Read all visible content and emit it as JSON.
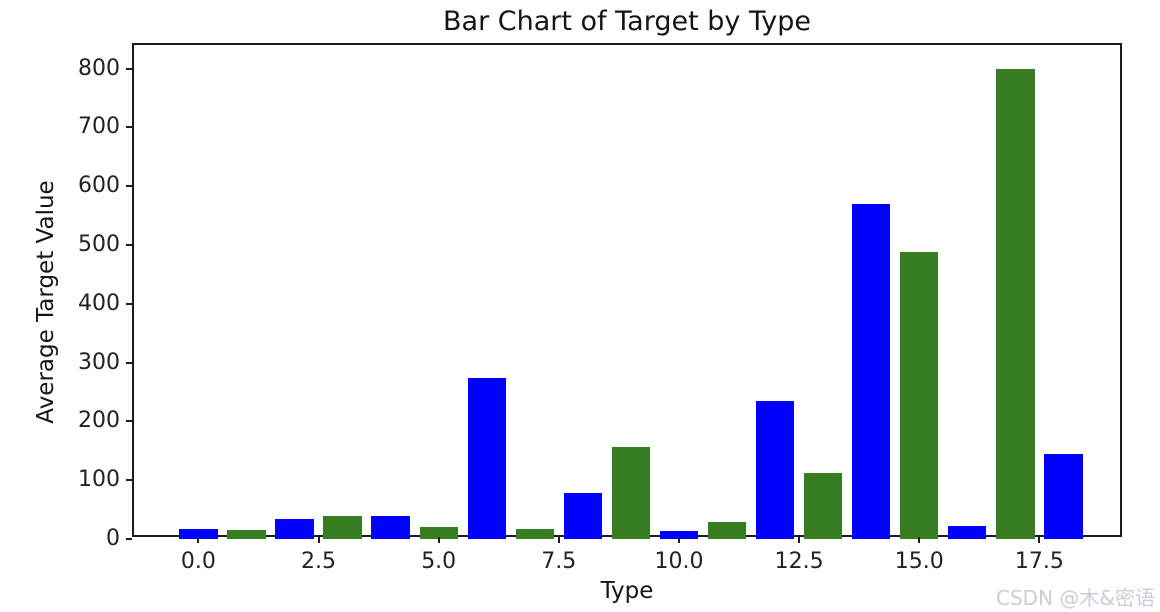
{
  "chart_data": {
    "type": "bar",
    "title": "Bar Chart of Target by Type",
    "xlabel": "Type",
    "ylabel": "Average Target Value",
    "x": [
      0,
      1,
      2,
      3,
      4,
      5,
      6,
      7,
      8,
      9,
      10,
      11,
      12,
      13,
      14,
      15,
      16,
      17,
      18
    ],
    "values": [
      17,
      16,
      34,
      39,
      39,
      20,
      274,
      17,
      78,
      157,
      13,
      29,
      235,
      112,
      570,
      488,
      23,
      800,
      145
    ],
    "bar_colors": [
      "#0000ff",
      "#377e22",
      "#0000ff",
      "#377e22",
      "#0000ff",
      "#377e22",
      "#0000ff",
      "#377e22",
      "#0000ff",
      "#377e22",
      "#0000ff",
      "#377e22",
      "#0000ff",
      "#377e22",
      "#0000ff",
      "#377e22",
      "#0000ff",
      "#377e22",
      "#0000ff"
    ],
    "bar_width": 0.8,
    "xlim": [
      -1.34,
      19.26
    ],
    "ylim": [
      0,
      840
    ],
    "xticks": [
      0,
      2.5,
      5,
      7.5,
      10,
      12.5,
      15,
      17.5
    ],
    "xtick_labels": [
      "0.0",
      "2.5",
      "5.0",
      "7.5",
      "10.0",
      "12.5",
      "15.0",
      "17.5"
    ],
    "yticks": [
      0,
      100,
      200,
      300,
      400,
      500,
      600,
      700,
      800
    ],
    "ytick_labels": [
      "0",
      "100",
      "200",
      "300",
      "400",
      "500",
      "600",
      "700",
      "800"
    ],
    "grid": false,
    "colors": {
      "blue": "#0000ff",
      "green": "#377e22"
    }
  },
  "watermark": {
    "text": "CSDN @木&密语",
    "color": "#ccccd8"
  }
}
